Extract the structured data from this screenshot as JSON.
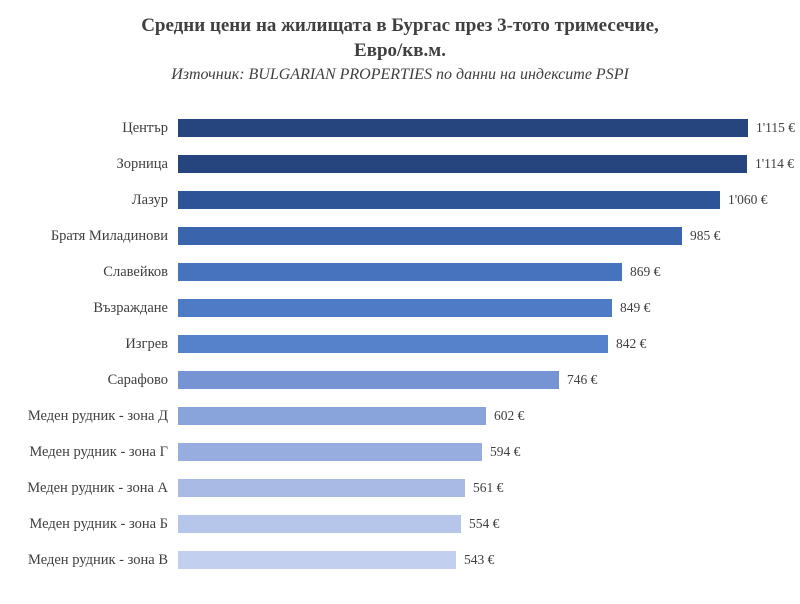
{
  "header": {
    "title_line1": "Средни цени на жилищата в Бургас през 3-тото тримесечие,",
    "title_line2": "Евро/кв.м.",
    "subtitle": "Източник: BULGARIAN PROPERTIES по данни на индексите PSPI"
  },
  "chart_data": {
    "type": "bar",
    "orientation": "horizontal",
    "title": "Средни цени на жилищата в Бургас през 3-тото тримесечие, Евро/кв.м.",
    "subtitle": "Източник: BULGARIAN PROPERTIES по данни на индексите PSPI",
    "categories": [
      "Център",
      "Зорница",
      "Лазур",
      "Братя Миладинови",
      "Славейков",
      "Възраждане",
      "Изгрев",
      "Сарафово",
      "Меден рудник - зона Д",
      "Меден рудник - зона Г",
      "Меден рудник - зона А",
      "Меден рудник - зона Б",
      "Меден рудник - зона В"
    ],
    "values": [
      1115,
      1114,
      1060,
      985,
      869,
      849,
      842,
      746,
      602,
      594,
      561,
      554,
      543
    ],
    "value_labels": [
      "1'115 €",
      "1'114 €",
      "1'060 €",
      "985 €",
      "869 €",
      "849 €",
      "842 €",
      "746 €",
      "602 €",
      "594 €",
      "561 €",
      "554 €",
      "543 €"
    ],
    "bar_colors": [
      "#26457E",
      "#26457E",
      "#2D5496",
      "#3A64AC",
      "#4672BE",
      "#4F7AC6",
      "#5681CB",
      "#7694D4",
      "#89A3DB",
      "#97ADDF",
      "#A9BBE5",
      "#B6C5EA",
      "#C3CFEF"
    ],
    "xlim": [
      0,
      1115
    ],
    "unit": "€/кв.м.",
    "grid": false,
    "legend": false,
    "value_label_position": "right-of-bar",
    "text_color": "#404040"
  }
}
